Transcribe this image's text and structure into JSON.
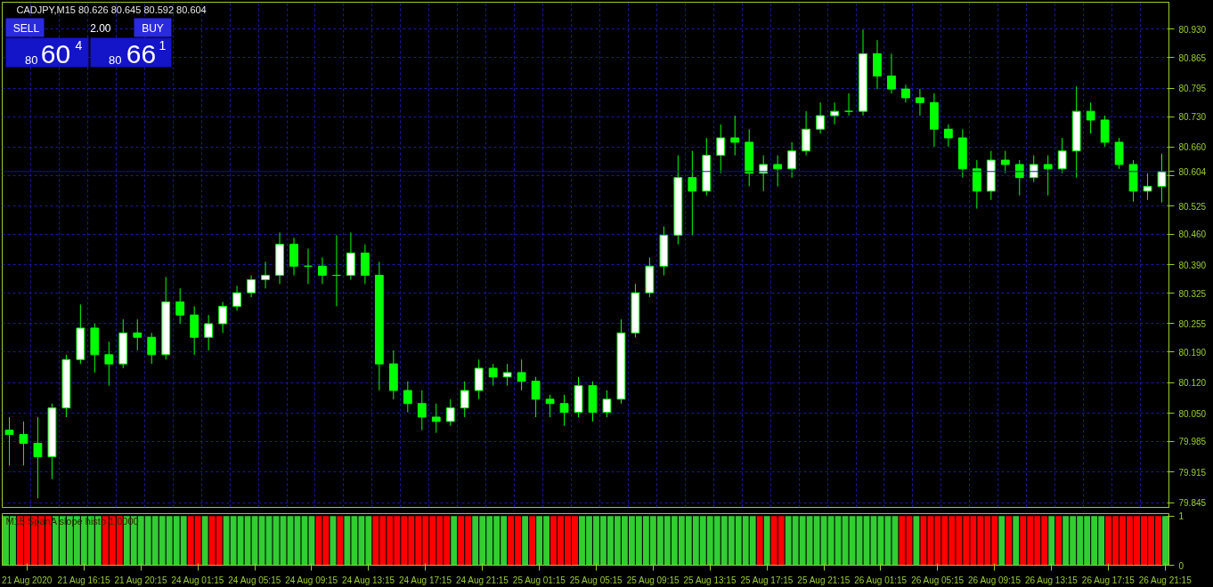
{
  "chart_data": [
    {
      "type": "candlestick",
      "title": "CADJPY,M15  80.626 80.645 80.592 80.604",
      "annotations": [
        "SELL",
        "2.00",
        "BUY",
        "80",
        "60",
        "4",
        "80",
        "66",
        "1"
      ],
      "categories": [
        null,
        null,
        null,
        null,
        null,
        null,
        null,
        null,
        null,
        null,
        null,
        null,
        null,
        null,
        null,
        null,
        null,
        null,
        null,
        null,
        null,
        null,
        null,
        null,
        null,
        null,
        null,
        null,
        null,
        null,
        null,
        null,
        null,
        null,
        null,
        null,
        null,
        null,
        null,
        null,
        null,
        null,
        null,
        null,
        null,
        null,
        null,
        null,
        null,
        null,
        null,
        null,
        null,
        null,
        null,
        null,
        null,
        null,
        null,
        null,
        null,
        null,
        null,
        null,
        null,
        null,
        null,
        null,
        null,
        null,
        null,
        null,
        null,
        null,
        null,
        null,
        null,
        null,
        null,
        null,
        null,
        null
      ],
      "ohlc": [
        [
          80.011,
          80.041,
          79.93,
          80.001
        ],
        [
          80.001,
          80.031,
          79.93,
          79.981
        ],
        [
          79.981,
          80.041,
          79.855,
          79.95
        ],
        [
          79.95,
          80.072,
          79.899,
          80.062
        ],
        [
          80.062,
          80.184,
          80.041,
          80.173
        ],
        [
          80.173,
          80.299,
          80.163,
          80.245
        ],
        [
          80.245,
          80.255,
          80.143,
          80.184
        ],
        [
          80.184,
          80.214,
          80.113,
          80.163
        ],
        [
          80.163,
          80.265,
          80.153,
          80.234
        ],
        [
          80.234,
          80.265,
          80.194,
          80.224
        ],
        [
          80.224,
          80.234,
          80.163,
          80.184
        ],
        [
          80.184,
          80.362,
          80.173,
          80.305
        ],
        [
          80.305,
          80.336,
          80.255,
          80.275
        ],
        [
          80.275,
          80.295,
          80.184,
          80.224
        ],
        [
          80.224,
          80.275,
          80.194,
          80.255
        ],
        [
          80.255,
          80.305,
          80.234,
          80.295
        ],
        [
          80.295,
          80.342,
          80.285,
          80.326
        ],
        [
          80.326,
          80.366,
          80.316,
          80.356
        ],
        [
          80.356,
          80.397,
          80.336,
          80.366
        ],
        [
          80.366,
          80.464,
          80.346,
          80.437
        ],
        [
          80.437,
          80.452,
          80.366,
          80.387
        ],
        [
          80.387,
          80.427,
          80.346,
          80.387
        ],
        [
          80.387,
          80.407,
          80.346,
          80.366
        ],
        [
          80.366,
          80.458,
          80.295,
          80.366
        ],
        [
          80.366,
          80.464,
          80.356,
          80.417
        ],
        [
          80.417,
          80.437,
          80.346,
          80.366
        ],
        [
          80.366,
          80.397,
          80.102,
          80.163
        ],
        [
          80.163,
          80.194,
          80.082,
          80.102
        ],
        [
          80.102,
          80.123,
          80.052,
          80.072
        ],
        [
          80.072,
          80.102,
          80.011,
          80.041
        ],
        [
          80.041,
          80.072,
          80.005,
          80.031
        ],
        [
          80.031,
          80.082,
          80.021,
          80.062
        ],
        [
          80.062,
          80.123,
          80.041,
          80.102
        ],
        [
          80.102,
          80.173,
          80.082,
          80.153
        ],
        [
          80.153,
          80.163,
          80.113,
          80.133
        ],
        [
          80.133,
          80.163,
          80.113,
          80.143
        ],
        [
          80.143,
          80.173,
          80.102,
          80.123
        ],
        [
          80.123,
          80.133,
          80.041,
          80.082
        ],
        [
          80.082,
          80.092,
          80.041,
          80.072
        ],
        [
          80.072,
          80.092,
          80.021,
          80.052
        ],
        [
          80.052,
          80.133,
          80.041,
          80.113
        ],
        [
          80.113,
          80.123,
          80.031,
          80.052
        ],
        [
          80.052,
          80.102,
          80.041,
          80.082
        ],
        [
          80.082,
          80.265,
          80.072,
          80.234
        ],
        [
          80.234,
          80.346,
          80.224,
          80.326
        ],
        [
          80.326,
          80.407,
          80.316,
          80.387
        ],
        [
          80.387,
          80.478,
          80.366,
          80.458
        ],
        [
          80.458,
          80.641,
          80.437,
          80.59
        ],
        [
          80.59,
          80.651,
          80.458,
          80.559
        ],
        [
          80.559,
          80.681,
          80.549,
          80.641
        ],
        [
          80.641,
          80.712,
          80.6,
          80.681
        ],
        [
          80.681,
          80.732,
          80.641,
          80.671
        ],
        [
          80.671,
          80.701,
          80.57,
          80.6
        ],
        [
          80.6,
          80.641,
          80.559,
          80.62
        ],
        [
          80.62,
          80.641,
          80.57,
          80.61
        ],
        [
          80.61,
          80.671,
          80.59,
          80.651
        ],
        [
          80.651,
          80.742,
          80.641,
          80.701
        ],
        [
          80.701,
          80.762,
          80.691,
          80.732
        ],
        [
          80.732,
          80.762,
          80.712,
          80.742
        ],
        [
          80.742,
          80.783,
          80.732,
          80.742
        ],
        [
          80.742,
          80.929,
          80.732,
          80.874
        ],
        [
          80.874,
          80.905,
          80.793,
          80.823
        ],
        [
          80.823,
          80.874,
          80.783,
          80.793
        ],
        [
          80.793,
          80.803,
          80.762,
          80.773
        ],
        [
          80.773,
          80.793,
          80.732,
          80.762
        ],
        [
          80.762,
          80.783,
          80.661,
          80.701
        ],
        [
          80.701,
          80.712,
          80.661,
          80.681
        ],
        [
          80.681,
          80.701,
          80.59,
          80.61
        ],
        [
          80.61,
          80.63,
          80.519,
          80.559
        ],
        [
          80.559,
          80.651,
          80.539,
          80.63
        ],
        [
          80.63,
          80.651,
          80.6,
          80.62
        ],
        [
          80.62,
          80.63,
          80.549,
          80.59
        ],
        [
          80.59,
          80.641,
          80.58,
          80.62
        ],
        [
          80.62,
          80.641,
          80.549,
          80.61
        ],
        [
          80.61,
          80.681,
          80.6,
          80.651
        ],
        [
          80.651,
          80.799,
          80.59,
          80.742
        ],
        [
          80.742,
          80.762,
          80.691,
          80.722
        ],
        [
          80.722,
          80.732,
          80.661,
          80.671
        ],
        [
          80.671,
          80.681,
          80.61,
          80.62
        ],
        [
          80.62,
          80.63,
          80.535,
          80.559
        ],
        [
          80.559,
          80.6,
          80.539,
          80.57
        ],
        [
          80.57,
          80.645,
          80.533,
          80.604
        ]
      ],
      "color": "#00ff00",
      "ylim": [
        79.834,
        80.992
      ],
      "yticks": [
        {
          "value": 80.93,
          "label": "80.930"
        },
        80.865,
        80.795,
        {
          "value": 80.73,
          "label": "80.730"
        },
        {
          "value": 80.66,
          "label": "80.660"
        },
        {
          "value": 80.595,
          "label": null
        },
        80.525,
        {
          "value": 80.46,
          "label": "80.460"
        },
        {
          "value": 80.39,
          "label": "80.390"
        },
        80.325,
        80.255,
        {
          "value": 80.19,
          "label": "80.190"
        },
        {
          "value": 80.12,
          "label": "80.120"
        },
        {
          "value": 80.05,
          "label": "80.050"
        },
        79.985,
        79.915,
        79.845
      ],
      "grid": true,
      "tick_labels": "y",
      "ref_lines": [
        {
          "axis": "y",
          "value": 80.604,
          "label": "80.604",
          "color": "#1010a0"
        }
      ]
    },
    {
      "type": "bar",
      "title": "M15  SpanA slope histo  1.0000",
      "categories": [
        null,
        null,
        null,
        "21 Aug 2020",
        null,
        null,
        null,
        null,
        null,
        null,
        null,
        "21 Aug 16:15",
        null,
        null,
        null,
        null,
        null,
        null,
        null,
        "21 Aug 20:15",
        null,
        null,
        null,
        null,
        null,
        null,
        null,
        "24 Aug 01:15",
        null,
        null,
        null,
        null,
        null,
        null,
        null,
        "24 Aug 05:15",
        null,
        null,
        null,
        null,
        null,
        null,
        null,
        "24 Aug 09:15",
        null,
        null,
        null,
        null,
        null,
        null,
        null,
        "24 Aug 13:15",
        null,
        null,
        null,
        null,
        null,
        null,
        null,
        "24 Aug 17:15",
        null,
        null,
        null,
        null,
        null,
        null,
        null,
        "24 Aug 21:15",
        null,
        null,
        null,
        null,
        null,
        null,
        null,
        "25 Aug 01:15",
        null,
        null,
        null,
        null,
        null,
        null,
        null,
        "25 Aug 05:15",
        null,
        null,
        null,
        null,
        null,
        null,
        null,
        "25 Aug 09:15",
        null,
        null,
        null,
        null,
        null,
        null,
        null,
        "25 Aug 13:15",
        null,
        null,
        null,
        null,
        null,
        null,
        null,
        "25 Aug 17:15",
        null,
        null,
        null,
        null,
        null,
        null,
        null,
        "25 Aug 21:15",
        null,
        null,
        null,
        null,
        null,
        null,
        null,
        "26 Aug 01:15",
        null,
        null,
        null,
        null,
        null,
        null,
        null,
        "26 Aug 05:15",
        null,
        null,
        null,
        null,
        null,
        null,
        null,
        "26 Aug 09:15",
        null,
        null,
        null,
        null,
        null,
        null,
        null,
        "26 Aug 13:15",
        null,
        null,
        null,
        null,
        null,
        null,
        null,
        "26 Aug 17:15",
        null,
        null,
        null,
        null,
        null,
        null,
        null,
        "26 Aug 21:15"
      ],
      "values": [
        1,
        1,
        1,
        1,
        1,
        1,
        1,
        1,
        1,
        1,
        1,
        1,
        1,
        1,
        1,
        1,
        1,
        1,
        1,
        1,
        1,
        1,
        1,
        1,
        1,
        1,
        1,
        1,
        1,
        1,
        1,
        1,
        1,
        1,
        1,
        1,
        1,
        1,
        1,
        1,
        1,
        1,
        1,
        1,
        1,
        1,
        1,
        1,
        1,
        1,
        1,
        1,
        1,
        1,
        1,
        1,
        1,
        1,
        1,
        1,
        1,
        1,
        1,
        1,
        1,
        1,
        1,
        1,
        1,
        1,
        1,
        1,
        1,
        1,
        1,
        1,
        1,
        1,
        1,
        1,
        1,
        1,
        1,
        1,
        1,
        1,
        1,
        1,
        1,
        1,
        1,
        1,
        1,
        1,
        1,
        1,
        1,
        1,
        1,
        1,
        1,
        1,
        1,
        1,
        1,
        1,
        1,
        1,
        1,
        1,
        1,
        1,
        1,
        1,
        1,
        1,
        1,
        1,
        1,
        1,
        1,
        1,
        1,
        1,
        1,
        1,
        1,
        1,
        1,
        1,
        1,
        1,
        1,
        1,
        1,
        1,
        1,
        1,
        1,
        1,
        1,
        1,
        1,
        1,
        1,
        1,
        1,
        1,
        1,
        1,
        1,
        1,
        1,
        1,
        1,
        1,
        1,
        1,
        1,
        1,
        1,
        1,
        1,
        1
      ],
      "colors": [
        "#32cd32",
        "#32cd32",
        "#ff0000",
        "#ff0000",
        "#ff0000",
        "#ff0000",
        "#ff0000",
        "#32cd32",
        "#32cd32",
        "#32cd32",
        "#32cd32",
        "#32cd32",
        "#32cd32",
        "#32cd32",
        "#ff0000",
        "#ff0000",
        "#ff0000",
        "#32cd32",
        "#32cd32",
        "#32cd32",
        "#32cd32",
        "#32cd32",
        "#32cd32",
        "#32cd32",
        "#32cd32",
        "#32cd32",
        "#ff0000",
        "#ff0000",
        "#32cd32",
        "#ff0000",
        "#ff0000",
        "#32cd32",
        "#32cd32",
        "#32cd32",
        "#32cd32",
        "#32cd32",
        "#32cd32",
        "#32cd32",
        "#32cd32",
        "#32cd32",
        "#32cd32",
        "#32cd32",
        "#32cd32",
        "#32cd32",
        "#ff0000",
        "#ff0000",
        "#32cd32",
        "#ff0000",
        "#32cd32",
        "#32cd32",
        "#32cd32",
        "#32cd32",
        "#ff0000",
        "#ff0000",
        "#ff0000",
        "#ff0000",
        "#ff0000",
        "#ff0000",
        "#ff0000",
        "#ff0000",
        "#ff0000",
        "#ff0000",
        "#ff0000",
        "#32cd32",
        "#ff0000",
        "#ff0000",
        "#32cd32",
        "#32cd32",
        "#32cd32",
        "#32cd32",
        "#32cd32",
        "#ff0000",
        "#ff0000",
        "#32cd32",
        "#ff0000",
        "#32cd32",
        "#32cd32",
        "#ff0000",
        "#ff0000",
        "#ff0000",
        "#ff0000",
        "#32cd32",
        "#32cd32",
        "#32cd32",
        "#32cd32",
        "#32cd32",
        "#32cd32",
        "#32cd32",
        "#32cd32",
        "#32cd32",
        "#32cd32",
        "#32cd32",
        "#32cd32",
        "#32cd32",
        "#32cd32",
        "#32cd32",
        "#32cd32",
        "#32cd32",
        "#32cd32",
        "#32cd32",
        "#32cd32",
        "#32cd32",
        "#32cd32",
        "#32cd32",
        "#32cd32",
        "#32cd32",
        "#ff0000",
        "#32cd32",
        "#ff0000",
        "#ff0000",
        "#32cd32",
        "#32cd32",
        "#32cd32",
        "#32cd32",
        "#32cd32",
        "#32cd32",
        "#32cd32",
        "#32cd32",
        "#32cd32",
        "#32cd32",
        "#32cd32",
        "#32cd32",
        "#32cd32",
        "#32cd32",
        "#32cd32",
        "#32cd32",
        "#ff0000",
        "#ff0000",
        "#32cd32",
        "#ff0000",
        "#ff0000",
        "#ff0000",
        "#ff0000",
        "#ff0000",
        "#ff0000",
        "#ff0000",
        "#ff0000",
        "#ff0000",
        "#ff0000",
        "#ff0000",
        "#32cd32",
        "#ff0000",
        "#32cd32",
        "#ff0000",
        "#ff0000",
        "#ff0000",
        "#ff0000",
        "#32cd32",
        "#ff0000",
        "#32cd32",
        "#32cd32",
        "#32cd32",
        "#32cd32",
        "#32cd32",
        "#32cd32",
        "#ff0000",
        "#ff0000",
        "#ff0000",
        "#ff0000",
        "#ff0000",
        "#ff0000",
        "#ff0000",
        "#ff0000",
        "#32cd32"
      ],
      "ylim": [
        0,
        1.05
      ],
      "yticks": [
        0,
        1
      ]
    }
  ]
}
